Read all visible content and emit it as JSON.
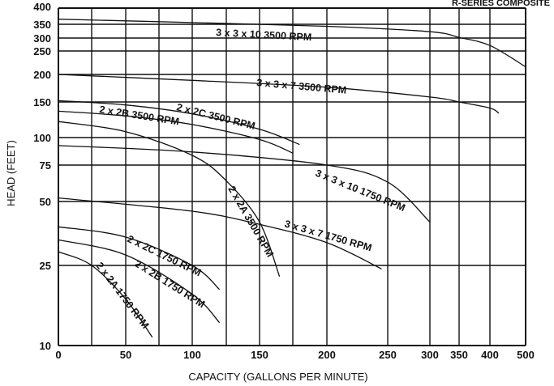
{
  "chart_data": {
    "type": "line",
    "title": "R-SERIES COMPOSITE",
    "xlabel": "CAPACITY (GALLONS PER MINUTE)",
    "ylabel": "HEAD (FEET)",
    "x_tick_labels": [
      "0",
      "50",
      "100",
      "150",
      "200",
      "250",
      "300",
      "350",
      "400",
      "500"
    ],
    "y_tick_labels": [
      "400",
      "350",
      "300",
      "250",
      "200",
      "150",
      "100",
      "75",
      "50",
      "25",
      "10"
    ],
    "xlim": [
      0,
      500
    ],
    "ylim": [
      10,
      400
    ],
    "y_scale": "log",
    "grid": true,
    "series": [
      {
        "name": "3 x 3 x 10 3500 RPM",
        "x": [
          0,
          100,
          200,
          300,
          350,
          400,
          500
        ],
        "y": [
          365,
          355,
          342,
          322,
          302,
          270,
          215
        ]
      },
      {
        "name": "3 x 3 x 7 3500 RPM",
        "x": [
          0,
          100,
          200,
          300,
          350,
          400,
          425
        ],
        "y": [
          200,
          188,
          175,
          158,
          150,
          140,
          132
        ]
      },
      {
        "name": "2 x 2C 3500 RPM",
        "x": [
          0,
          50,
          100,
          150,
          180
        ],
        "y": [
          152,
          145,
          131,
          110,
          93
        ]
      },
      {
        "name": "2 x 2B 3500 RPM",
        "x": [
          0,
          50,
          100,
          150,
          175
        ],
        "y": [
          135,
          128,
          116,
          98,
          85
        ]
      },
      {
        "name": "2 x 2A 3500 RPM",
        "x": [
          0,
          50,
          100,
          125,
          150,
          165
        ],
        "y": [
          120,
          107,
          83,
          63,
          40,
          22
        ]
      },
      {
        "name": "3 x 3 x 10 1750 RPM",
        "x": [
          0,
          100,
          200,
          250,
          300
        ],
        "y": [
          92,
          86,
          75,
          62,
          40
        ]
      },
      {
        "name": "3 x 3 x 7 1750 RPM",
        "x": [
          0,
          100,
          150,
          200,
          245
        ],
        "y": [
          52,
          45,
          39,
          32,
          24
        ]
      },
      {
        "name": "2 x 2C 1750 RPM",
        "x": [
          0,
          50,
          100,
          120
        ],
        "y": [
          38,
          34,
          25,
          19
        ]
      },
      {
        "name": "2 x 2B 1750 RPM",
        "x": [
          0,
          50,
          100,
          120
        ],
        "y": [
          33,
          28,
          18,
          13
        ]
      },
      {
        "name": "2 x 2A 1750 RPM",
        "x": [
          0,
          25,
          50,
          70
        ],
        "y": [
          29,
          25,
          17,
          11
        ]
      }
    ]
  }
}
